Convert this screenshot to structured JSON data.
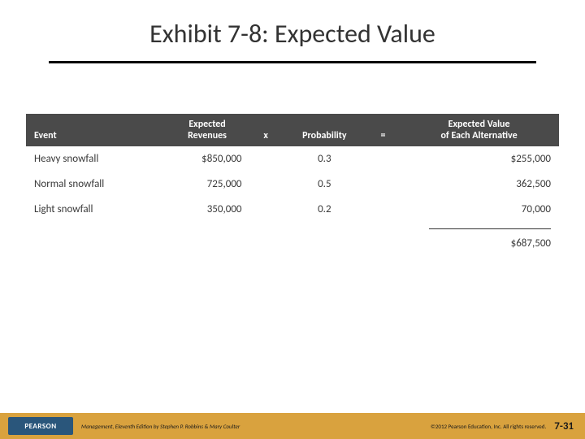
{
  "slide": {
    "title": "Exhibit 7-8: Expected Value",
    "title_color": "#333333",
    "rule_color": "#000000"
  },
  "table": {
    "type": "table",
    "header_bg": "#4a4a4a",
    "header_fg": "#ffffff",
    "body_fg": "#3a3a3a",
    "columns": [
      {
        "key": "event",
        "label": "Event",
        "align": "left",
        "width": "26%"
      },
      {
        "key": "revenues",
        "label_line1": "Expected",
        "label_line2": "Revenues",
        "align": "right",
        "width": "16%"
      },
      {
        "key": "times",
        "label": "x",
        "align": "center",
        "width": "6%"
      },
      {
        "key": "probability",
        "label": "Probability",
        "align": "center",
        "width": "16%"
      },
      {
        "key": "equals",
        "label": "=",
        "align": "center",
        "width": "6%"
      },
      {
        "key": "ev",
        "label_line1": "Expected Value",
        "label_line2": "of Each Alternative",
        "align": "right",
        "width": "30%"
      }
    ],
    "rows": [
      {
        "event": "Heavy snowfall",
        "revenues": "$850,000",
        "probability": "0.3",
        "ev": "$255,000"
      },
      {
        "event": "Normal snowfall",
        "revenues": "725,000",
        "probability": "0.5",
        "ev": "362,500"
      },
      {
        "event": "Light snowfall",
        "revenues": "350,000",
        "probability": "0.2",
        "ev": "70,000"
      }
    ],
    "total": "$687,500"
  },
  "footer": {
    "bg": "#d9a23e",
    "logo_bg": "#2a567b",
    "logo_text": "PEARSON",
    "credits": "Management, Eleventh Edition by Stephen P. Robbins & Mary Coulter",
    "copyright": "©2012 Pearson Education, Inc. All rights reserved.",
    "page": "7-31"
  }
}
